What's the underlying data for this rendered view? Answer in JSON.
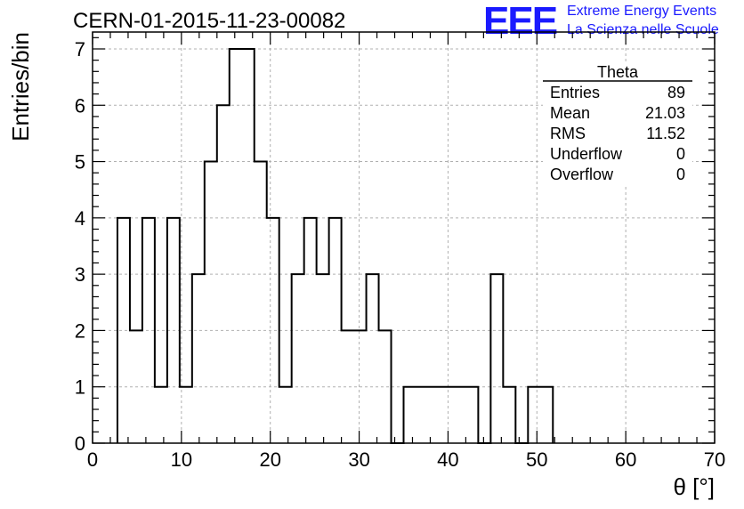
{
  "title": "CERN-01-2015-11-23-00082",
  "logo": {
    "text": "EEE",
    "line1": "Extreme Energy Events",
    "line2": "La Scienza nelle Scuole",
    "color": "#1a1aff"
  },
  "stats": {
    "name": "Theta",
    "rows": [
      {
        "label": "Entries",
        "value": "89"
      },
      {
        "label": "Mean",
        "value": "21.03"
      },
      {
        "label": "RMS",
        "value": "11.52"
      },
      {
        "label": "Underflow",
        "value": "0"
      },
      {
        "label": "Overflow",
        "value": "0"
      }
    ]
  },
  "chart_data": {
    "type": "bar",
    "title": "CERN-01-2015-11-23-00082",
    "xlabel": "θ [°]",
    "ylabel": "Entries/bin",
    "xlim": [
      0,
      70
    ],
    "ylim": [
      0,
      7.3
    ],
    "bin_width": 1.4,
    "grid": true,
    "x_ticks": [
      0,
      10,
      20,
      30,
      40,
      50,
      60,
      70
    ],
    "y_ticks": [
      0,
      1,
      2,
      3,
      4,
      5,
      6,
      7
    ],
    "bins": [
      {
        "x": 2.8,
        "value": 4
      },
      {
        "x": 4.2,
        "value": 2
      },
      {
        "x": 5.6,
        "value": 4
      },
      {
        "x": 7.0,
        "value": 1
      },
      {
        "x": 8.4,
        "value": 4
      },
      {
        "x": 9.8,
        "value": 1
      },
      {
        "x": 11.2,
        "value": 3
      },
      {
        "x": 12.6,
        "value": 5
      },
      {
        "x": 14.0,
        "value": 6
      },
      {
        "x": 15.4,
        "value": 7
      },
      {
        "x": 16.8,
        "value": 7
      },
      {
        "x": 18.2,
        "value": 5
      },
      {
        "x": 19.6,
        "value": 4
      },
      {
        "x": 21.0,
        "value": 1
      },
      {
        "x": 22.4,
        "value": 3
      },
      {
        "x": 23.8,
        "value": 4
      },
      {
        "x": 25.2,
        "value": 3
      },
      {
        "x": 26.6,
        "value": 4
      },
      {
        "x": 28.0,
        "value": 2
      },
      {
        "x": 29.4,
        "value": 2
      },
      {
        "x": 30.8,
        "value": 3
      },
      {
        "x": 32.2,
        "value": 2
      },
      {
        "x": 33.6,
        "value": 0
      },
      {
        "x": 35.0,
        "value": 1
      },
      {
        "x": 36.4,
        "value": 1
      },
      {
        "x": 37.8,
        "value": 1
      },
      {
        "x": 39.2,
        "value": 1
      },
      {
        "x": 40.6,
        "value": 1
      },
      {
        "x": 42.0,
        "value": 1
      },
      {
        "x": 43.4,
        "value": 0
      },
      {
        "x": 44.8,
        "value": 3
      },
      {
        "x": 46.2,
        "value": 1
      },
      {
        "x": 47.6,
        "value": 0
      },
      {
        "x": 49.0,
        "value": 1
      },
      {
        "x": 50.4,
        "value": 1
      }
    ]
  }
}
